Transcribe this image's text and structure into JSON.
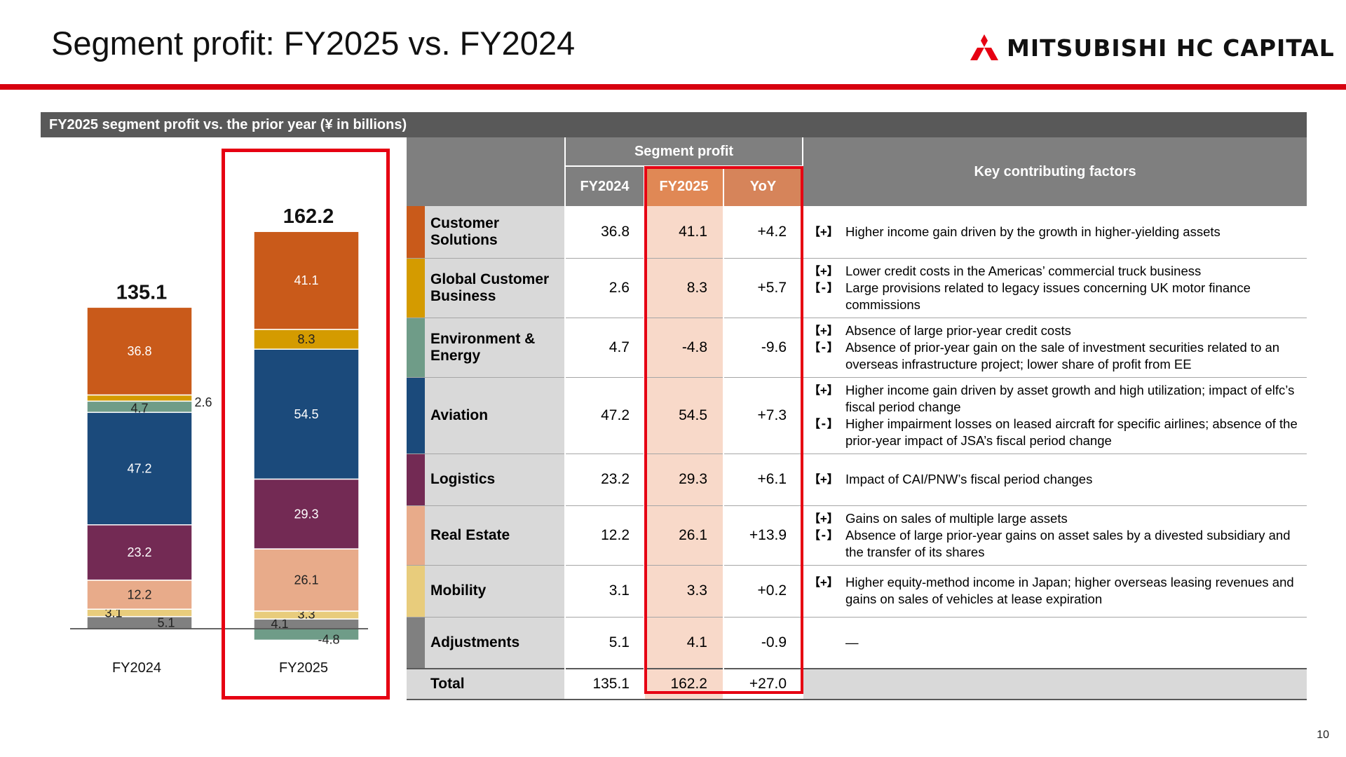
{
  "header": {
    "title": "Segment profit: FY2025 vs. FY2024",
    "logo_text": "MITSUBISHI HC CAPITAL",
    "logo_icon": "three-diamonds-icon",
    "accent_color": "#d7000f"
  },
  "section_title": "FY2025 segment profit vs. the prior year (¥ in billions)",
  "table": {
    "group_header": "Segment profit",
    "col_fy2024": "FY2024",
    "col_fy2025": "FY2025",
    "col_yoy": "YoY",
    "col_factors": "Key contributing factors",
    "rows": [
      {
        "name": "Customer Solutions",
        "color": "#c95a1a",
        "fy2024": "36.8",
        "fy2025": "41.1",
        "yoy": "+4.2",
        "factors": [
          {
            "sign": "【+】",
            "text": "Higher income gain driven by the growth in higher-yielding assets"
          }
        ]
      },
      {
        "name": "Global Customer Business",
        "color": "#d49b00",
        "fy2024": "2.6",
        "fy2025": "8.3",
        "yoy": "+5.7",
        "factors": [
          {
            "sign": "【+】",
            "text": "Lower credit costs in the Americas’ commercial truck business"
          },
          {
            "sign": "【-】",
            "text": "Large provisions related to legacy issues concerning UK motor finance commissions"
          }
        ]
      },
      {
        "name": "Environment & Energy",
        "color": "#6f9c88",
        "fy2024": "4.7",
        "fy2025": "-4.8",
        "yoy": "-9.6",
        "factors": [
          {
            "sign": "【+】",
            "text": "Absence of large prior-year credit costs"
          },
          {
            "sign": "【-】",
            "text": "Absence of prior-year gain on the sale of investment securities related to an overseas infrastructure project; lower share of profit from EE"
          }
        ]
      },
      {
        "name": "Aviation",
        "color": "#1b4a7b",
        "fy2024": "47.2",
        "fy2025": "54.5",
        "yoy": "+7.3",
        "factors": [
          {
            "sign": "【+】",
            "text": "Higher income gain driven by asset growth and high utilization; impact of elfc’s fiscal period change"
          },
          {
            "sign": "【-】",
            "text": "Higher impairment losses on leased aircraft for specific airlines; absence of the prior-year impact of JSA’s fiscal period change"
          }
        ]
      },
      {
        "name": "Logistics",
        "color": "#732a54",
        "fy2024": "23.2",
        "fy2025": "29.3",
        "yoy": "+6.1",
        "factors": [
          {
            "sign": "【+】",
            "text": "Impact of CAI/PNW’s fiscal period changes"
          }
        ]
      },
      {
        "name": "Real Estate",
        "color": "#e8ab8a",
        "fy2024": "12.2",
        "fy2025": "26.1",
        "yoy": "+13.9",
        "factors": [
          {
            "sign": "【+】",
            "text": "Gains on sales of multiple large assets"
          },
          {
            "sign": "【-】",
            "text": "Absence of large prior-year gains on asset sales by a divested subsidiary and the transfer of its shares"
          }
        ]
      },
      {
        "name": "Mobility",
        "color": "#e8cc7c",
        "fy2024": "3.1",
        "fy2025": "3.3",
        "yoy": "+0.2",
        "factors": [
          {
            "sign": "【+】",
            "text": "Higher equity-method income in Japan; higher overseas leasing revenues and gains on sales of vehicles at lease expiration"
          }
        ]
      },
      {
        "name": "Adjustments",
        "color": "#808080",
        "fy2024": "5.1",
        "fy2025": "4.1",
        "yoy": "-0.9",
        "factors": [
          {
            "sign": "",
            "text": "—"
          }
        ]
      }
    ],
    "total": {
      "name": "Total",
      "fy2024": "135.1",
      "fy2025": "162.2",
      "yoy": "+27.0"
    }
  },
  "chart_data": {
    "type": "bar",
    "stacked": true,
    "categories": [
      "FY2024",
      "FY2025"
    ],
    "totals": [
      "135.1",
      "162.2"
    ],
    "series": [
      {
        "name": "Adjustments",
        "color": "#808080",
        "values": [
          5.1,
          4.1
        ]
      },
      {
        "name": "Mobility",
        "color": "#e8cc7c",
        "values": [
          3.1,
          3.3
        ]
      },
      {
        "name": "Real Estate",
        "color": "#e8ab8a",
        "values": [
          12.2,
          26.1
        ]
      },
      {
        "name": "Logistics",
        "color": "#732a54",
        "values": [
          23.2,
          29.3
        ]
      },
      {
        "name": "Aviation",
        "color": "#1b4a7b",
        "values": [
          47.2,
          54.5
        ]
      },
      {
        "name": "Environment & Energy",
        "color": "#6f9c88",
        "values": [
          4.7,
          -4.8
        ]
      },
      {
        "name": "Global Customer Business",
        "color": "#d49b00",
        "values": [
          2.6,
          8.3
        ]
      },
      {
        "name": "Customer Solutions",
        "color": "#c95a1a",
        "values": [
          36.8,
          41.1
        ]
      }
    ]
  },
  "page_number": "10"
}
